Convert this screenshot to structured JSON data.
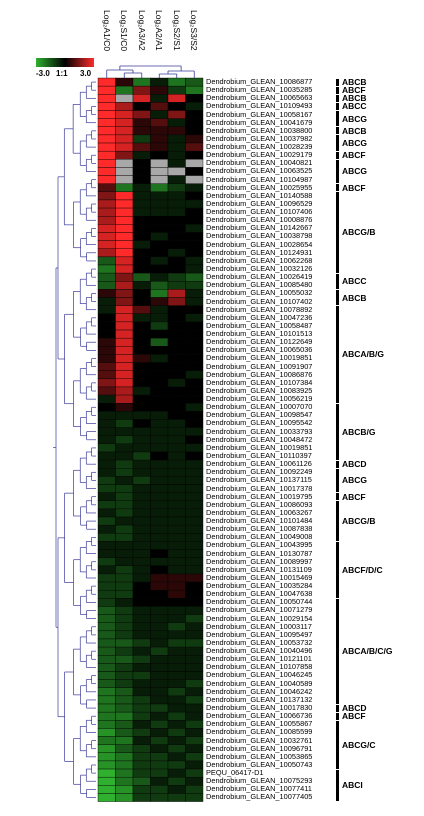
{
  "chart_data": {
    "type": "heatmap",
    "columns": [
      "Log₂A1/C0",
      "Log₂S1/C0",
      "Log₂A3/A2",
      "Log₂A2/A1",
      "Log₂S2/S1",
      "Log₂S3/S2"
    ],
    "legend": {
      "min_label": "-3.0",
      "mid_label": "1:1",
      "max_label": "3.0",
      "range": [
        -3,
        3
      ],
      "colors": {
        "low": "#2fb02f",
        "mid": "#000000",
        "high": "#ff2a2a",
        "missing": "#a8a8a8"
      }
    },
    "rows": [
      {
        "gene": "Dendrobium_GLEAN_10086877",
        "values": [
          3,
          0.5,
          -2,
          -0.5,
          -2,
          -1.5
        ]
      },
      {
        "gene": "Dendrobium_GLEAN_10035285",
        "values": [
          3,
          -2,
          1.5,
          0.5,
          -1,
          -2
        ]
      },
      {
        "gene": "Dendrobium_GLEAN_10065663",
        "values": [
          3,
          null,
          2.5,
          -0.5,
          2.5,
          0
        ]
      },
      {
        "gene": "Dendrobium_GLEAN_10109493",
        "values": [
          3,
          2,
          0,
          1,
          0,
          -0.5
        ]
      },
      {
        "gene": "Dendrobium_GLEAN_10058167",
        "values": [
          3,
          2.5,
          1.5,
          -0.5,
          1.5,
          0
        ]
      },
      {
        "gene": "Dendrobium_GLEAN_10041679",
        "values": [
          3,
          2.5,
          0.5,
          1,
          -0.5,
          0
        ]
      },
      {
        "gene": "Dendrobium_GLEAN_10038800",
        "values": [
          3,
          2.5,
          0.5,
          0.5,
          0.5,
          0
        ]
      },
      {
        "gene": "Dendrobium_GLEAN_10037982",
        "values": [
          3,
          2.5,
          -1,
          0.5,
          -0.5,
          0.5
        ]
      },
      {
        "gene": "Dendrobium_GLEAN_10028239",
        "values": [
          3,
          2.5,
          1,
          0.5,
          -0.5,
          1
        ]
      },
      {
        "gene": "Dendrobium_GLEAN_10029179",
        "values": [
          3,
          1.5,
          -0.5,
          0,
          -0.5,
          0
        ]
      },
      {
        "gene": "Dendrobium_GLEAN_10040821",
        "values": [
          3,
          null,
          0,
          null,
          -0.5,
          null
        ]
      },
      {
        "gene": "Dendrobium_GLEAN_10063525",
        "values": [
          3,
          null,
          0,
          null,
          null,
          0
        ]
      },
      {
        "gene": "Dendrobium_GLEAN_10104987",
        "values": [
          3,
          null,
          0,
          null,
          -0.5,
          null
        ]
      },
      {
        "gene": "Dendrobium_GLEAN_10025955",
        "values": [
          1,
          -2,
          -0.5,
          -2,
          -1,
          -0.5
        ]
      },
      {
        "gene": "Dendrobium_GLEAN_10140588",
        "values": [
          1.5,
          3,
          -0.5,
          -0.5,
          -0.5,
          0
        ]
      },
      {
        "gene": "Dendrobium_GLEAN_10096529",
        "values": [
          2,
          3,
          -0.5,
          -0.5,
          -0.5,
          -0.5
        ]
      },
      {
        "gene": "Dendrobium_GLEAN_10107406",
        "values": [
          2,
          3,
          -0.5,
          -0.5,
          -0.5,
          0
        ]
      },
      {
        "gene": "Dendrobium_GLEAN_10008876",
        "values": [
          2,
          3,
          0,
          0,
          0,
          0
        ]
      },
      {
        "gene": "Dendrobium_GLEAN_10142667",
        "values": [
          2.5,
          3,
          0,
          0,
          0,
          -0.5
        ]
      },
      {
        "gene": "Dendrobium_GLEAN_10038798",
        "values": [
          2.5,
          3,
          0,
          -0.5,
          0,
          0
        ]
      },
      {
        "gene": "Dendrobium_GLEAN_10028654",
        "values": [
          2.5,
          3,
          -0.5,
          0,
          0,
          0
        ]
      },
      {
        "gene": "Dendrobium_GLEAN_10124931",
        "values": [
          2,
          3,
          0,
          0,
          -0.5,
          0
        ]
      },
      {
        "gene": "Dendrobium_GLEAN_10062268",
        "values": [
          -1.5,
          2.5,
          0,
          -0.5,
          0,
          -0.5
        ]
      },
      {
        "gene": "Dendrobium_GLEAN_10032126",
        "values": [
          -2,
          2.5,
          0,
          0,
          0,
          -0.5
        ]
      },
      {
        "gene": "Dendrobium_GLEAN_10026419",
        "values": [
          -1.5,
          1.5,
          -1.5,
          -0.5,
          -1,
          -1.5
        ]
      },
      {
        "gene": "Dendrobium_GLEAN_10085480",
        "values": [
          -1.5,
          2,
          -0.5,
          -1.5,
          -1,
          -1
        ]
      },
      {
        "gene": "Dendrobium_GLEAN_10055032",
        "values": [
          0.5,
          1.5,
          0,
          -2,
          2,
          -0.5
        ]
      },
      {
        "gene": "Dendrobium_GLEAN_10107402",
        "values": [
          -0.5,
          1.5,
          0,
          0.5,
          1.5,
          -0.5
        ]
      },
      {
        "gene": "Dendrobium_GLEAN_10078892",
        "values": [
          -0.5,
          2.5,
          1,
          -0.5,
          0,
          0
        ]
      },
      {
        "gene": "Dendrobium_GLEAN_10047236",
        "values": [
          0,
          2.5,
          -0.5,
          -0.5,
          0,
          -0.5
        ]
      },
      {
        "gene": "Dendrobium_GLEAN_10058487",
        "values": [
          0,
          2.5,
          0,
          -1,
          0,
          0
        ]
      },
      {
        "gene": "Dendrobium_GLEAN_10101513",
        "values": [
          0,
          2.5,
          0,
          0,
          0,
          0
        ]
      },
      {
        "gene": "Dendrobium_GLEAN_10122649",
        "values": [
          0.5,
          2.5,
          0,
          -1.5,
          0,
          0
        ]
      },
      {
        "gene": "Dendrobium_GLEAN_10065036",
        "values": [
          0.5,
          2.5,
          0,
          0,
          0,
          0
        ]
      },
      {
        "gene": "Dendrobium_GLEAN_10019851",
        "values": [
          0.5,
          2.5,
          0.5,
          -0.5,
          0,
          0
        ]
      },
      {
        "gene": "Dendrobium_GLEAN_10091907",
        "values": [
          1,
          2.5,
          0,
          0,
          0,
          0
        ]
      },
      {
        "gene": "Dendrobium_GLEAN_10086876",
        "values": [
          1,
          2.5,
          0,
          0,
          0,
          -0.5
        ]
      },
      {
        "gene": "Dendrobium_GLEAN_10107384",
        "values": [
          1.5,
          2.5,
          0,
          0,
          -0.5,
          0
        ]
      },
      {
        "gene": "Dendrobium_GLEAN_10083925",
        "values": [
          1,
          2,
          -0.5,
          0,
          0,
          0
        ]
      },
      {
        "gene": "Dendrobium_GLEAN_10056219",
        "values": [
          -0.5,
          2,
          0,
          0,
          0,
          0
        ]
      },
      {
        "gene": "Dendrobium_GLEAN_10007070",
        "values": [
          0,
          0.5,
          0,
          0,
          0,
          -0.5
        ]
      },
      {
        "gene": "Dendrobium_GLEAN_10098547",
        "values": [
          -0.5,
          -0.5,
          -0.5,
          -0.5,
          0,
          0
        ]
      },
      {
        "gene": "Dendrobium_GLEAN_10095542",
        "values": [
          -0.5,
          -1,
          0,
          -0.5,
          -0.5,
          0
        ]
      },
      {
        "gene": "Dendrobium_GLEAN_10033793",
        "values": [
          -0.5,
          -0.5,
          -0.5,
          -0.5,
          -0.5,
          -0.5
        ]
      },
      {
        "gene": "Dendrobium_GLEAN_10048472",
        "values": [
          -0.5,
          -1,
          -0.5,
          -0.5,
          -0.5,
          0
        ]
      },
      {
        "gene": "Dendrobium_GLEAN_10019851",
        "values": [
          -1,
          -0.5,
          -0.5,
          -0.5,
          -0.5,
          -0.5
        ]
      },
      {
        "gene": "Dendrobium_GLEAN_10110397",
        "values": [
          -0.5,
          -0.5,
          -1,
          0,
          -0.5,
          0
        ]
      },
      {
        "gene": "Dendrobium_GLEAN_10061126",
        "values": [
          -0.5,
          -1,
          -0.5,
          -0.5,
          -0.5,
          -0.5
        ]
      },
      {
        "gene": "Dendrobium_GLEAN_10092249",
        "values": [
          -0.5,
          -1,
          -0.5,
          -0.5,
          -0.5,
          -0.5
        ]
      },
      {
        "gene": "Dendrobium_GLEAN_10137115",
        "values": [
          -1,
          -0.5,
          -1,
          -0.5,
          -0.5,
          -0.5
        ]
      },
      {
        "gene": "Dendrobium_GLEAN_10017378",
        "values": [
          -1,
          -1,
          -0.5,
          -0.5,
          -0.5,
          -0.5
        ]
      },
      {
        "gene": "Dendrobium_GLEAN_10019795",
        "values": [
          -0.5,
          -1,
          -0.5,
          -0.5,
          -0.5,
          -0.5
        ]
      },
      {
        "gene": "Dendrobium_GLEAN_10086093",
        "values": [
          -1,
          -1,
          -0.5,
          -0.5,
          -0.5,
          -0.5
        ]
      },
      {
        "gene": "Dendrobium_GLEAN_10063267",
        "values": [
          -0.5,
          -1,
          -0.5,
          -0.5,
          -0.5,
          -0.5
        ]
      },
      {
        "gene": "Dendrobium_GLEAN_10101484",
        "values": [
          -1,
          -0.5,
          -0.5,
          -0.5,
          -0.5,
          -0.5
        ]
      },
      {
        "gene": "Dendrobium_GLEAN_10087838",
        "values": [
          -0.5,
          -1,
          -0.5,
          -0.5,
          -0.5,
          -0.5
        ]
      },
      {
        "gene": "Dendrobium_GLEAN_10049008",
        "values": [
          -1,
          -1,
          -0.5,
          -0.5,
          -0.5,
          -0.5
        ]
      },
      {
        "gene": "Dendrobium_GLEAN_10043995",
        "values": [
          -0.5,
          -0.5,
          -0.5,
          -0.5,
          -0.5,
          -0.5
        ]
      },
      {
        "gene": "Dendrobium_GLEAN_10130787",
        "values": [
          -0.5,
          -0.5,
          -0.5,
          0,
          -0.5,
          -0.5
        ]
      },
      {
        "gene": "Dendrobium_GLEAN_10089997",
        "values": [
          -1,
          -0.5,
          -0.5,
          -0.5,
          -0.5,
          -0.5
        ]
      },
      {
        "gene": "Dendrobium_GLEAN_10131109",
        "values": [
          -0.5,
          -1,
          -0.5,
          0,
          -0.5,
          -0.5
        ]
      },
      {
        "gene": "Dendrobium_GLEAN_10015469",
        "values": [
          -1,
          -1,
          -0.5,
          0.5,
          0.5,
          0.5
        ]
      },
      {
        "gene": "Dendrobium_GLEAN_10035284",
        "values": [
          -1,
          -1,
          0,
          0.5,
          0.5,
          0
        ]
      },
      {
        "gene": "Dendrobium_GLEAN_10047638",
        "values": [
          -1,
          -1,
          0,
          0,
          0.5,
          0
        ]
      },
      {
        "gene": "Dendrobium_GLEAN_10050744",
        "values": [
          -1,
          -0.5,
          0,
          0,
          0,
          0
        ]
      },
      {
        "gene": "Dendrobium_GLEAN_10071279",
        "values": [
          -1.5,
          -1,
          -0.5,
          -0.5,
          -0.5,
          -0.5
        ]
      },
      {
        "gene": "Dendrobium_GLEAN_10029154",
        "values": [
          -1.5,
          -1,
          -0.5,
          -0.5,
          -0.5,
          -1
        ]
      },
      {
        "gene": "Dendrobium_GLEAN_10003117",
        "values": [
          -1.5,
          -1,
          -0.5,
          -0.5,
          -1,
          -0.5
        ]
      },
      {
        "gene": "Dendrobium_GLEAN_10095497",
        "values": [
          -1.5,
          -1,
          -0.5,
          -0.5,
          -0.5,
          -0.5
        ]
      },
      {
        "gene": "Dendrobium_GLEAN_10053732",
        "values": [
          -1.5,
          -1.5,
          -1,
          -0.5,
          -1,
          -1
        ]
      },
      {
        "gene": "Dendrobium_GLEAN_10040496",
        "values": [
          -1.5,
          -1,
          -0.5,
          -1,
          -0.5,
          -0.5
        ]
      },
      {
        "gene": "Dendrobium_GLEAN_10121101",
        "values": [
          -1.5,
          -1.5,
          -1,
          -0.5,
          -0.5,
          -0.5
        ]
      },
      {
        "gene": "Dendrobium_GLEAN_10107858",
        "values": [
          -1.5,
          -1,
          -0.5,
          -0.5,
          -0.5,
          -0.5
        ]
      },
      {
        "gene": "Dendrobium_GLEAN_10046245",
        "values": [
          -1.5,
          -1,
          -1,
          -0.5,
          -0.5,
          -0.5
        ]
      },
      {
        "gene": "Dendrobium_GLEAN_10040589",
        "values": [
          -1.5,
          -1,
          -0.5,
          -0.5,
          -0.5,
          -1
        ]
      },
      {
        "gene": "Dendrobium_GLEAN_10046242",
        "values": [
          -2,
          -1.5,
          -0.5,
          -0.5,
          -1,
          -0.5
        ]
      },
      {
        "gene": "Dendrobium_GLEAN_10137132",
        "values": [
          -2,
          -1.5,
          -1,
          -0.5,
          -0.5,
          -1
        ]
      },
      {
        "gene": "Dendrobium_GLEAN_10017830",
        "values": [
          -2,
          -1.5,
          -1,
          -1,
          -0.5,
          -0.5
        ]
      },
      {
        "gene": "Dendrobium_GLEAN_10066736",
        "values": [
          -2,
          -2,
          -1,
          -0.5,
          -1,
          -0.5
        ]
      },
      {
        "gene": "Dendrobium_GLEAN_10055867",
        "values": [
          -2,
          -1.5,
          -0.5,
          -1,
          -0.5,
          -1
        ]
      },
      {
        "gene": "Dendrobium_GLEAN_10085599",
        "values": [
          -2.5,
          -1.5,
          -1,
          -0.5,
          -1,
          -0.5
        ]
      },
      {
        "gene": "Dendrobium_GLEAN_10032761",
        "values": [
          -2,
          -2,
          -0.5,
          -1,
          -0.5,
          -1
        ]
      },
      {
        "gene": "Dendrobium_GLEAN_10096791",
        "values": [
          -2.5,
          -1.5,
          -1,
          -0.5,
          -1,
          -0.5
        ]
      },
      {
        "gene": "Dendrobium_GLEAN_10053865",
        "values": [
          -2.5,
          -2,
          -1,
          -1,
          -0.5,
          -1
        ]
      },
      {
        "gene": "Dendrobium_GLEAN_10050743",
        "values": [
          -2.5,
          -2,
          -1,
          -1,
          -1,
          -0.5
        ]
      },
      {
        "gene": "PEQU_06417-D1",
        "values": [
          -3,
          -2,
          -1,
          -1,
          -0.5,
          -1
        ]
      },
      {
        "gene": "Dendrobium_GLEAN_10075293",
        "values": [
          -3,
          -2,
          -1.5,
          -0.5,
          -1,
          -0.5
        ]
      },
      {
        "gene": "Dendrobium_GLEAN_10077411",
        "values": [
          -3,
          -2.5,
          -1,
          -1,
          -0.5,
          -1
        ]
      },
      {
        "gene": "Dendrobium_GLEAN_10077405",
        "values": [
          -3,
          -2.5,
          -1,
          -1,
          -1,
          -1
        ]
      }
    ],
    "groups": [
      {
        "label": "ABCB",
        "first_row": 0,
        "last_row": 0
      },
      {
        "label": "ABCF",
        "first_row": 1,
        "last_row": 1
      },
      {
        "label": "ABCB",
        "first_row": 2,
        "last_row": 2
      },
      {
        "label": "ABCC",
        "first_row": 3,
        "last_row": 3
      },
      {
        "label": "ABCG",
        "first_row": 4,
        "last_row": 5
      },
      {
        "label": "ABCB",
        "first_row": 6,
        "last_row": 6
      },
      {
        "label": "ABCG",
        "first_row": 7,
        "last_row": 8
      },
      {
        "label": "ABCF",
        "first_row": 9,
        "last_row": 9
      },
      {
        "label": "ABCG",
        "first_row": 10,
        "last_row": 12
      },
      {
        "label": "ABCF",
        "first_row": 13,
        "last_row": 13
      },
      {
        "label": "ABCG/B",
        "first_row": 14,
        "last_row": 23
      },
      {
        "label": "ABCC",
        "first_row": 24,
        "last_row": 25
      },
      {
        "label": "ABCB",
        "first_row": 26,
        "last_row": 27
      },
      {
        "label": "ABCA/B/G",
        "first_row": 28,
        "last_row": 39
      },
      {
        "label": "ABCB/G",
        "first_row": 40,
        "last_row": 46
      },
      {
        "label": "ABCD",
        "first_row": 47,
        "last_row": 47
      },
      {
        "label": "ABCG",
        "first_row": 48,
        "last_row": 50
      },
      {
        "label": "ABCF",
        "first_row": 51,
        "last_row": 51
      },
      {
        "label": "ABCG/B",
        "first_row": 52,
        "last_row": 56
      },
      {
        "label": "ABCF/D/C",
        "first_row": 57,
        "last_row": 63
      },
      {
        "label": "ABCA/B/C/G",
        "first_row": 64,
        "last_row": 76
      },
      {
        "label": "ABCD",
        "first_row": 77,
        "last_row": 77
      },
      {
        "label": "ABCF",
        "first_row": 78,
        "last_row": 78
      },
      {
        "label": "ABCG/C",
        "first_row": 79,
        "last_row": 84
      },
      {
        "label": "ABCI",
        "first_row": 85,
        "last_row": 88
      }
    ]
  }
}
